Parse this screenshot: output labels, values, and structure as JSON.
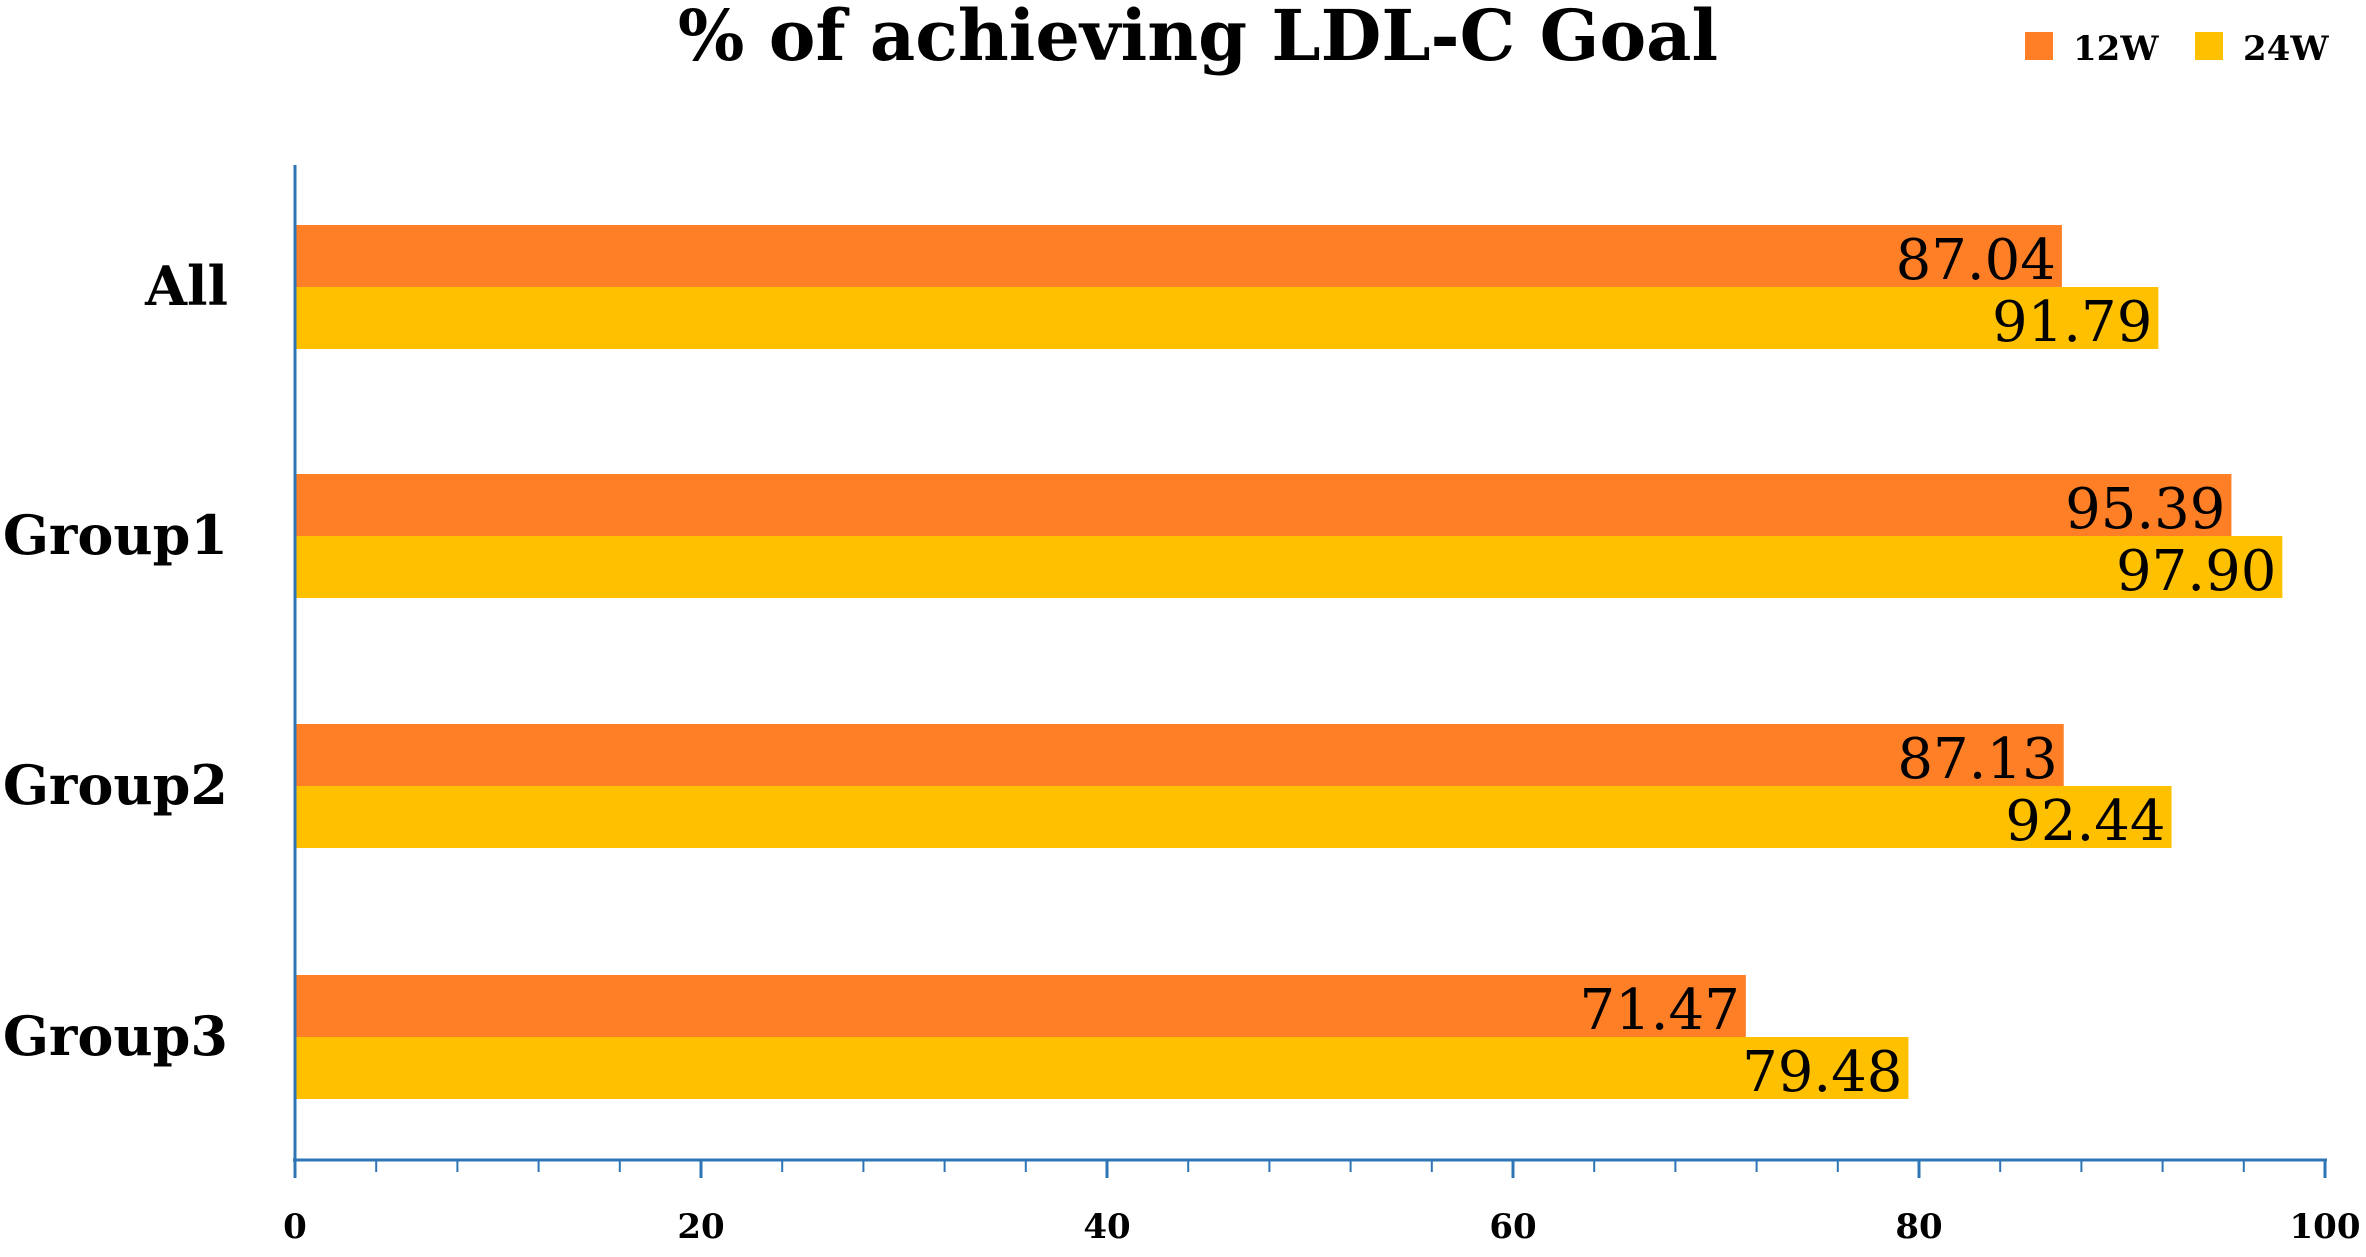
{
  "chart_data": {
    "type": "bar",
    "orientation": "horizontal",
    "title": "% of achieving LDL-C Goal",
    "categories": [
      "All",
      "Group1",
      "Group2",
      "Group3"
    ],
    "series": [
      {
        "name": "12W",
        "color": "#FF7F27",
        "values": [
          87.04,
          95.39,
          87.13,
          71.47
        ],
        "labels": [
          "87.04",
          "95.39",
          "87.13",
          "71.47"
        ]
      },
      {
        "name": "24W",
        "color": "#FFC000",
        "values": [
          91.79,
          97.9,
          92.44,
          79.48
        ],
        "labels": [
          "91.79",
          "97.90",
          "92.44",
          "79.48"
        ]
      }
    ],
    "xlim": [
      0,
      100
    ],
    "major_ticks": [
      0,
      20,
      40,
      60,
      80,
      100
    ],
    "minor_tick_step": 4,
    "tick_labels": [
      "0",
      "20",
      "40",
      "60",
      "80",
      "100"
    ],
    "axis_color": "#2E75B6",
    "legend_position": "top-right",
    "xlabel": "",
    "ylabel": ""
  }
}
